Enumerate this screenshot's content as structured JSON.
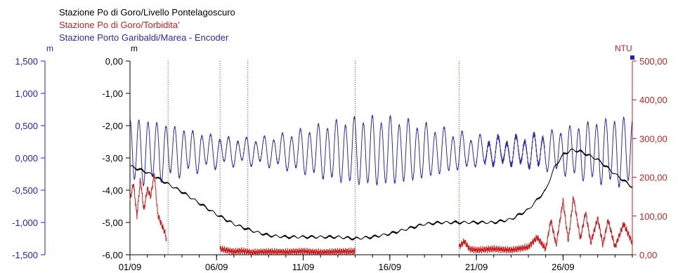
{
  "colors": {
    "black": "#000000",
    "red": "#cc2020",
    "blue": "#2a2ab8",
    "axis_blue": "#2020c8",
    "axis_red": "#c82020"
  },
  "legend": [
    {
      "label": "Stazione Po di Goro/Livello Pontelagoscuro",
      "color": "#000000"
    },
    {
      "label": "Stazione Po di Goro/Torbidita'",
      "color": "#cc2020"
    },
    {
      "label": "Stazione Porto Garibaldi/Marea - Encoder",
      "color": "#2a2ab8"
    }
  ],
  "chart_data": {
    "type": "line",
    "x_range": [
      "01/09",
      "30/09"
    ],
    "x_ticks": [
      "01/09",
      "06/09",
      "11/09",
      "16/09",
      "21/09",
      "26/09"
    ],
    "axes": {
      "left_outer": {
        "unit": "m",
        "color": "#2020c8",
        "range": [
          -1.5,
          1.5
        ],
        "ticks": [
          "1,500",
          "1,000",
          "0,500",
          "0,000",
          "-0,500",
          "-1,000",
          "-1,500"
        ]
      },
      "left_inner": {
        "unit": "m",
        "color": "#000000",
        "range": [
          -6,
          0
        ],
        "ticks": [
          "0,00",
          "-1,00",
          "-2,00",
          "-3,00",
          "-4,00",
          "-5,00",
          "-6,00"
        ]
      },
      "right": {
        "unit": "NTU",
        "color": "#c82020",
        "range": [
          0,
          500
        ],
        "ticks": [
          "500,00",
          "400,00",
          "300,00",
          "200,00",
          "100,00",
          "0,00"
        ]
      }
    },
    "series": [
      {
        "name": "Stazione Po di Goro/Livello Pontelagoscuro",
        "axis": "left_inner",
        "color": "#000000",
        "x": [
          1,
          2,
          3,
          4,
          5,
          6,
          7,
          8,
          9,
          10,
          11,
          12,
          13,
          14,
          15,
          16,
          17,
          18,
          19,
          20,
          21,
          22,
          23,
          24,
          25,
          25.5,
          26,
          26.5,
          27,
          28,
          29,
          30
        ],
        "y": [
          -3.25,
          -3.45,
          -3.75,
          -4.05,
          -4.4,
          -4.75,
          -5.05,
          -5.25,
          -5.4,
          -5.45,
          -5.45,
          -5.45,
          -5.45,
          -5.5,
          -5.45,
          -5.35,
          -5.2,
          -5.05,
          -5.0,
          -5.0,
          -5.0,
          -5.0,
          -4.9,
          -4.6,
          -4.0,
          -3.3,
          -2.9,
          -2.75,
          -2.8,
          -3.05,
          -3.5,
          -3.9
        ]
      },
      {
        "name": "Stazione Po di Goro/Torbidita'",
        "axis": "right",
        "color": "#cc2020",
        "segments": [
          {
            "x": [
              1.0,
              1.2,
              1.4,
              1.6,
              1.8,
              2.0,
              2.2,
              2.4,
              2.6,
              2.8,
              3.0,
              3.1
            ],
            "y": [
              140,
              185,
              100,
              195,
              115,
              170,
              150,
              210,
              105,
              80,
              60,
              40
            ]
          },
          {
            "x": [
              6.2,
              6.5,
              7,
              7.5,
              8,
              9,
              10,
              11,
              12,
              13,
              14
            ],
            "y": [
              15,
              12,
              8,
              10,
              6,
              8,
              7,
              9,
              6,
              8,
              9
            ]
          },
          {
            "x": [
              20.0,
              20.3,
              20.6,
              21,
              22,
              23,
              24,
              24.5,
              25,
              25.3,
              25.6,
              26,
              26.3,
              26.6,
              27,
              27.3,
              27.6,
              28,
              28.3,
              28.6,
              29,
              29.5,
              30
            ],
            "y": [
              20,
              35,
              15,
              12,
              15,
              12,
              20,
              45,
              15,
              90,
              25,
              140,
              35,
              150,
              40,
              110,
              30,
              95,
              25,
              90,
              20,
              80,
              30
            ]
          }
        ]
      },
      {
        "name": "Stazione Porto Garibaldi/Marea - Encoder",
        "axis": "left_outer",
        "color": "#2a2ab8",
        "oscillation": {
          "mean": 0.1,
          "amplitude_min": 0.18,
          "amplitude_max": 0.5,
          "cycles_per_day": 1.93
        }
      }
    ],
    "vertical_markers": {
      "color": "#cc2020",
      "x": [
        3.2,
        6.2,
        7.8,
        14.0,
        20.0
      ]
    }
  }
}
